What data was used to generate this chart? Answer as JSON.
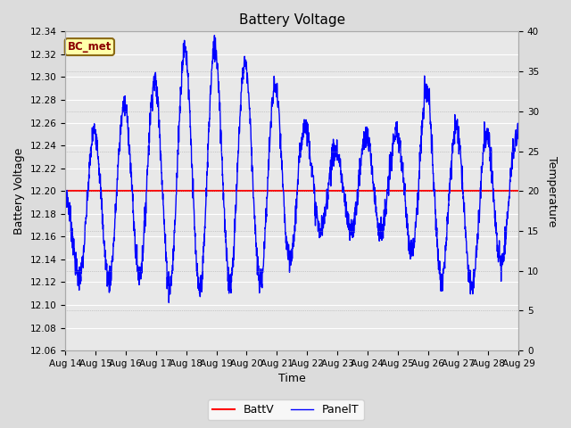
{
  "title": "Battery Voltage",
  "xlabel": "Time",
  "ylabel_left": "Battery Voltage",
  "ylabel_right": "Temperature",
  "x_tick_labels": [
    "Aug 14",
    "Aug 15",
    "Aug 16",
    "Aug 17",
    "Aug 18",
    "Aug 19",
    "Aug 20",
    "Aug 21",
    "Aug 22",
    "Aug 23",
    "Aug 24",
    "Aug 25",
    "Aug 26",
    "Aug 27",
    "Aug 28",
    "Aug 29"
  ],
  "ylim_left": [
    12.06,
    12.34
  ],
  "ylim_right": [
    0,
    40
  ],
  "battv_value": 12.2,
  "bg_color": "#dcdcdc",
  "plot_bg_color": "#e8e8e8",
  "line_color_batt": "red",
  "line_color_panel": "blue",
  "legend_labels": [
    "BattV",
    "PanelT"
  ],
  "annotation_text": "BC_met",
  "annotation_bg": "#ffffaa",
  "annotation_border": "#8B6914"
}
